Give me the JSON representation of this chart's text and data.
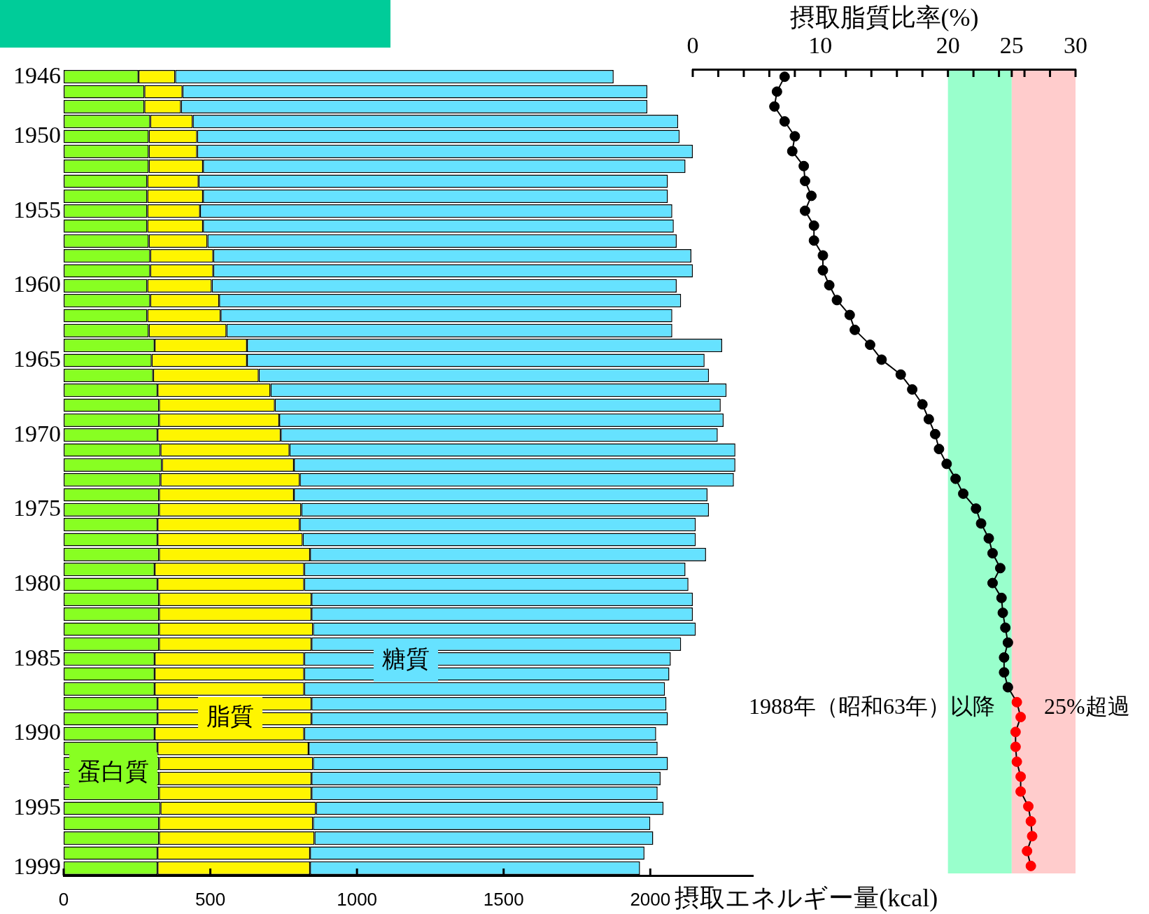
{
  "chart_data": [
    {
      "type": "bar",
      "orientation": "horizontal",
      "stacked": true,
      "categories": [
        "1946",
        null,
        null,
        null,
        "1950",
        null,
        null,
        null,
        null,
        "1955",
        null,
        null,
        null,
        null,
        "1960",
        null,
        null,
        null,
        null,
        "1965",
        null,
        null,
        null,
        null,
        "1970",
        null,
        null,
        null,
        null,
        "1975",
        null,
        null,
        null,
        null,
        "1980",
        null,
        null,
        null,
        null,
        "1985",
        null,
        null,
        null,
        null,
        "1990",
        null,
        null,
        null,
        null,
        "1995",
        null,
        null,
        null,
        "1999"
      ],
      "series": [
        {
          "name": "蛋白質",
          "color": "#88ff22",
          "values": [
            255,
            275,
            275,
            295,
            290,
            290,
            290,
            285,
            285,
            285,
            285,
            290,
            295,
            295,
            285,
            295,
            285,
            290,
            310,
            300,
            305,
            320,
            325,
            325,
            320,
            330,
            335,
            330,
            325,
            325,
            320,
            320,
            325,
            310,
            320,
            325,
            325,
            325,
            325,
            310,
            310,
            310,
            320,
            320,
            310,
            320,
            325,
            325,
            325,
            330,
            325,
            325,
            320,
            320
          ]
        },
        {
          "name": "脂質",
          "color": "#fff500",
          "values": [
            125,
            130,
            125,
            145,
            165,
            165,
            185,
            175,
            190,
            180,
            190,
            200,
            215,
            215,
            220,
            235,
            250,
            265,
            315,
            325,
            360,
            385,
            395,
            410,
            420,
            440,
            450,
            475,
            460,
            485,
            485,
            495,
            515,
            510,
            500,
            520,
            520,
            525,
            520,
            510,
            510,
            510,
            525,
            525,
            510,
            515,
            525,
            520,
            520,
            530,
            525,
            530,
            520,
            520
          ]
        },
        {
          "name": "糖質",
          "color": "#66e2ff",
          "values": [
            1495,
            1585,
            1590,
            1655,
            1645,
            1690,
            1645,
            1600,
            1585,
            1610,
            1605,
            1600,
            1630,
            1635,
            1585,
            1575,
            1540,
            1520,
            1620,
            1560,
            1535,
            1555,
            1520,
            1515,
            1490,
            1520,
            1505,
            1480,
            1410,
            1390,
            1350,
            1340,
            1350,
            1300,
            1310,
            1300,
            1300,
            1305,
            1260,
            1250,
            1245,
            1230,
            1210,
            1215,
            1200,
            1190,
            1210,
            1190,
            1180,
            1185,
            1150,
            1155,
            1140,
            1125
          ]
        }
      ],
      "xlim": [
        0,
        2350
      ],
      "xticks": [
        0,
        500,
        1000,
        1500,
        2000
      ],
      "xlabel": "摂取エネルギー量(kcal)"
    },
    {
      "type": "line",
      "orientation": "horizontal",
      "tick_labels": "x",
      "categories": [
        "1946",
        null,
        null,
        null,
        "1950",
        null,
        null,
        null,
        null,
        "1955",
        null,
        null,
        null,
        null,
        "1960",
        null,
        null,
        null,
        null,
        "1965",
        null,
        null,
        null,
        null,
        "1970",
        null,
        null,
        null,
        null,
        "1975",
        null,
        null,
        null,
        null,
        "1980",
        null,
        null,
        null,
        null,
        "1985",
        null,
        null,
        null,
        null,
        "1990",
        null,
        null,
        null,
        null,
        "1995",
        null,
        null,
        null,
        "1999"
      ],
      "series": [
        {
          "color": "#000000",
          "colors": [
            "#000000",
            "#000000",
            "#000000",
            "#000000",
            "#000000",
            "#000000",
            "#000000",
            "#000000",
            "#000000",
            "#000000",
            "#000000",
            "#000000",
            "#000000",
            "#000000",
            "#000000",
            "#000000",
            "#000000",
            "#000000",
            "#000000",
            "#000000",
            "#000000",
            "#000000",
            "#000000",
            "#000000",
            "#000000",
            "#000000",
            "#000000",
            "#000000",
            "#000000",
            "#000000",
            "#000000",
            "#000000",
            "#000000",
            "#000000",
            "#000000",
            "#000000",
            "#000000",
            "#000000",
            "#000000",
            "#000000",
            "#000000",
            "#000000",
            "#ff0000",
            "#ff0000",
            "#ff0000",
            "#ff0000",
            "#ff0000",
            "#ff0000",
            "#ff0000",
            "#ff0000",
            "#ff0000",
            "#ff0000",
            "#ff0000",
            "#ff0000"
          ],
          "values": [
            7.2,
            6.6,
            6.4,
            7.2,
            8.0,
            7.8,
            8.7,
            8.8,
            9.3,
            8.8,
            9.5,
            9.5,
            10.2,
            10.2,
            10.7,
            11.3,
            12.3,
            12.7,
            13.9,
            14.8,
            16.3,
            17.2,
            18.0,
            18.5,
            19.0,
            19.3,
            19.9,
            20.6,
            21.2,
            22.2,
            22.6,
            23.2,
            23.5,
            24.1,
            23.5,
            24.2,
            24.3,
            24.5,
            24.7,
            24.4,
            24.4,
            24.7,
            25.4,
            25.7,
            25.3,
            25.3,
            25.4,
            25.7,
            25.7,
            26.3,
            26.5,
            26.6,
            26.2,
            26.5
          ]
        }
      ],
      "xlim": [
        0,
        30
      ],
      "xticks": [
        0,
        {
          "value": 2,
          "label": null
        },
        {
          "value": 4,
          "label": null
        },
        {
          "value": 6,
          "label": null
        },
        {
          "value": 8,
          "label": null
        },
        10,
        {
          "value": 12,
          "label": null
        },
        {
          "value": 14,
          "label": null
        },
        {
          "value": 16,
          "label": null
        },
        {
          "value": 18,
          "label": null
        },
        20,
        {
          "value": 22,
          "label": null
        },
        {
          "value": 24,
          "label": null
        },
        25,
        {
          "value": 26,
          "label": null
        },
        {
          "value": 28,
          "label": null
        },
        30
      ],
      "xlabel": "摂取脂質比率(%)",
      "bands": [
        {
          "axis": "x",
          "from": 20,
          "to": 25,
          "color": "#99ffcc"
        },
        {
          "axis": "x",
          "from": 25,
          "to": 30,
          "color": "#ffcccc"
        }
      ],
      "annotations": [
        "1988年（昭和63年）以降",
        "25%超過"
      ],
      "marker": "circle"
    }
  ]
}
